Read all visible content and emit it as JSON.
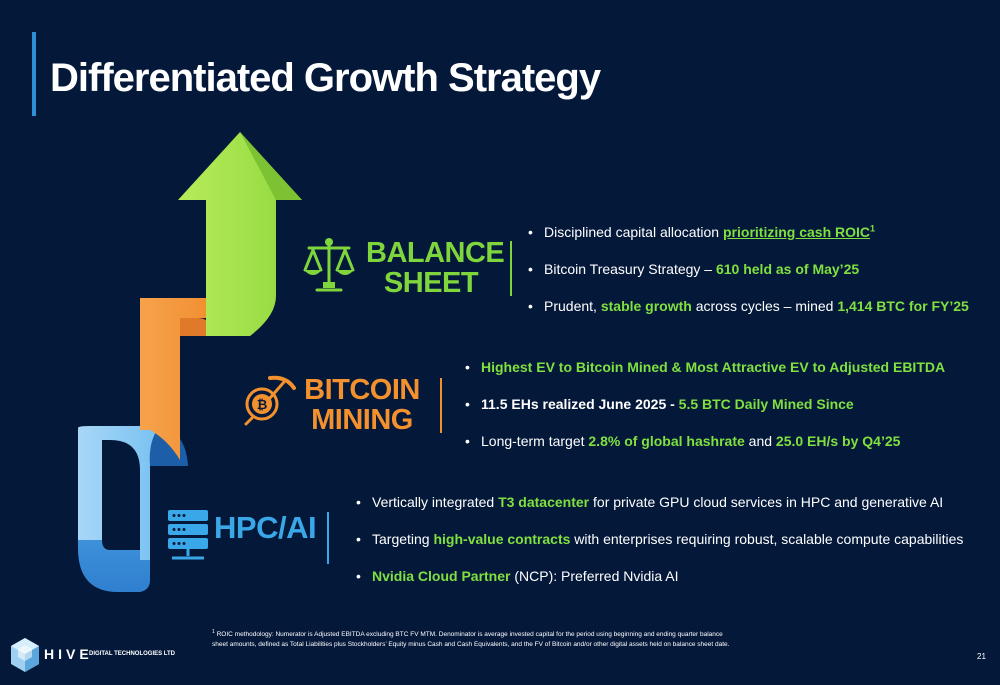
{
  "title": "Differentiated Growth Strategy",
  "sections": {
    "balance_sheet": {
      "label_line1": "BALANCE",
      "label_line2": "SHEET",
      "icon": "scales-icon",
      "color": "#7fd53c",
      "bullets": [
        {
          "pre": "Disciplined capital allocation ",
          "hl": "prioritizing cash ROIC",
          "sup": "1"
        },
        {
          "pre": "Bitcoin Treasury Strategy – ",
          "hl": "610 held as of May’25"
        },
        {
          "pre": "Prudent, ",
          "hl": "stable growth",
          "mid": " across cycles – mined ",
          "hl2": "1,414 BTC for FY’25"
        }
      ]
    },
    "bitcoin_mining": {
      "label_line1": "BITCOIN",
      "label_line2": "MINING",
      "icon": "bitcoin-pickaxe-icon",
      "color": "#f2912e",
      "bullets": [
        {
          "hl": "Highest EV to Bitcoin Mined & Most Attractive EV to Adjusted EBITDA"
        },
        {
          "bold": "11.5 EHs realized June 2025 - ",
          "hl": "5.5 BTC Daily Mined Since"
        },
        {
          "pre": "Long-term target ",
          "hl": "2.8% of global hashrate",
          "mid": " and ",
          "hl2": "25.0 EH/s by Q4’25"
        }
      ]
    },
    "hpc_ai": {
      "label": "HPC/AI",
      "icon": "server-rack-icon",
      "color": "#3aa8e8",
      "bullets": [
        {
          "pre": "Vertically integrated ",
          "hl": "T3 datacenter",
          "post": " for private GPU cloud services in HPC and generative AI"
        },
        {
          "pre": "Targeting ",
          "hl": "high-value contracts",
          "post": " with enterprises requiring robust, scalable compute capabilities"
        },
        {
          "hl": "Nvidia Cloud Partner",
          "post": " (NCP): Preferred Nvidia AI"
        }
      ]
    }
  },
  "footnote": {
    "number": "1",
    "text": "ROIC methodology: Numerator is Adjusted EBITDA excluding BTC FV MTM. Denominator is average invested capital for the period using beginning and ending quarter balance sheet amounts, defined as Total Liabilities plus Stockholders’ Equity minus Cash and Cash Equivalents, and the FV of Bitcoin and/or other digital assets held on balance sheet date."
  },
  "logo": {
    "name": "HIVE",
    "subtitle": "DIGITAL TECHNOLOGIES LTD"
  },
  "page_number": "21",
  "colors": {
    "background": "#04183a",
    "green": "#7fd53c",
    "orange": "#f2912e",
    "blue": "#3aa8e8"
  }
}
